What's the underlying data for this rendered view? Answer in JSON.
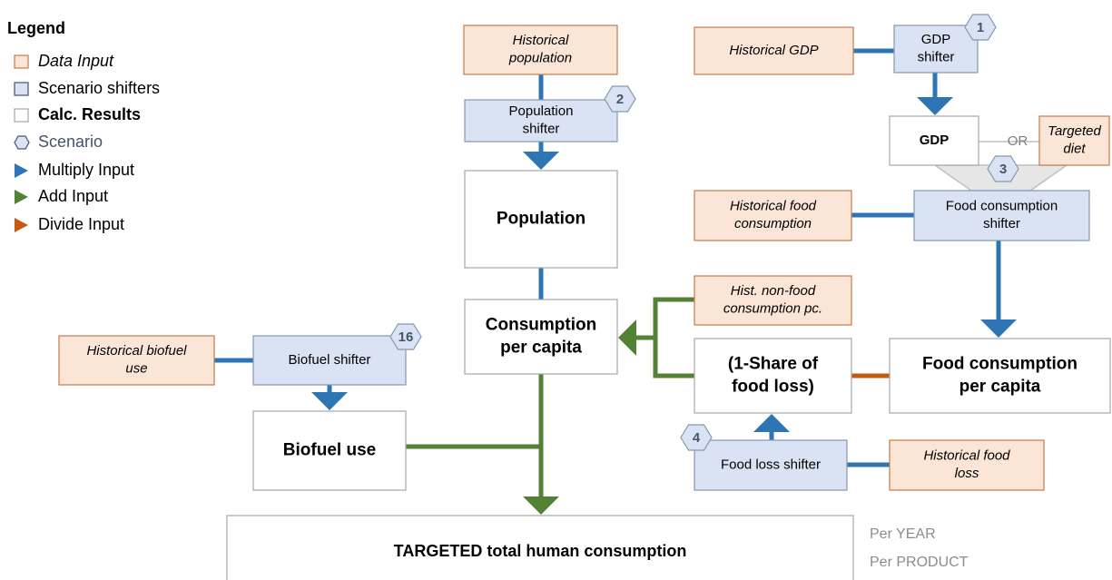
{
  "legend": {
    "title": "Legend",
    "items": [
      {
        "label": "Data Input"
      },
      {
        "label": "Scenario shifters"
      },
      {
        "label": "Calc. Results"
      },
      {
        "label": "Scenario"
      },
      {
        "label": "Multiply Input"
      },
      {
        "label": "Add Input"
      },
      {
        "label": "Divide Input"
      }
    ]
  },
  "nodes": {
    "historical_population": {
      "lines": [
        "Historical",
        "population"
      ]
    },
    "population_shifter": {
      "lines": [
        "Population",
        "shifter"
      ]
    },
    "population": {
      "lines": [
        "Population"
      ]
    },
    "consumption_pc": {
      "lines": [
        "Consumption",
        "per capita"
      ]
    },
    "historical_gdp": {
      "lines": [
        "Historical GDP"
      ]
    },
    "gdp_shifter": {
      "lines": [
        "GDP",
        "shifter"
      ]
    },
    "gdp": {
      "lines": [
        "GDP"
      ]
    },
    "targeted_diet": {
      "lines": [
        "Targeted",
        "diet"
      ]
    },
    "historical_food_consumption": {
      "lines": [
        "Historical food",
        "consumption"
      ]
    },
    "food_consumption_shifter": {
      "lines": [
        "Food consumption",
        "shifter"
      ]
    },
    "hist_nonfood": {
      "lines": [
        "Hist. non-food",
        "consumption pc."
      ]
    },
    "share_food_loss": {
      "lines": [
        "(1-Share of",
        "food loss)"
      ]
    },
    "food_consumption_pc": {
      "lines": [
        "Food consumption",
        "per capita"
      ]
    },
    "food_loss_shifter": {
      "lines": [
        "Food loss shifter"
      ]
    },
    "historical_food_loss": {
      "lines": [
        "Historical food",
        "loss"
      ]
    },
    "historical_biofuel": {
      "lines": [
        "Historical biofuel",
        "use"
      ]
    },
    "biofuel_shifter": {
      "lines": [
        "Biofuel shifter"
      ]
    },
    "biofuel_use": {
      "lines": [
        "Biofuel use"
      ]
    },
    "total": {
      "lines": [
        "TARGETED total human consumption"
      ]
    }
  },
  "or_label": "OR",
  "scenarios": {
    "gdp": "1",
    "population": "2",
    "food_consumption": "3",
    "food_loss": "4",
    "biofuel": "16"
  },
  "notes": [
    "Per YEAR",
    "Per PRODUCT"
  ]
}
